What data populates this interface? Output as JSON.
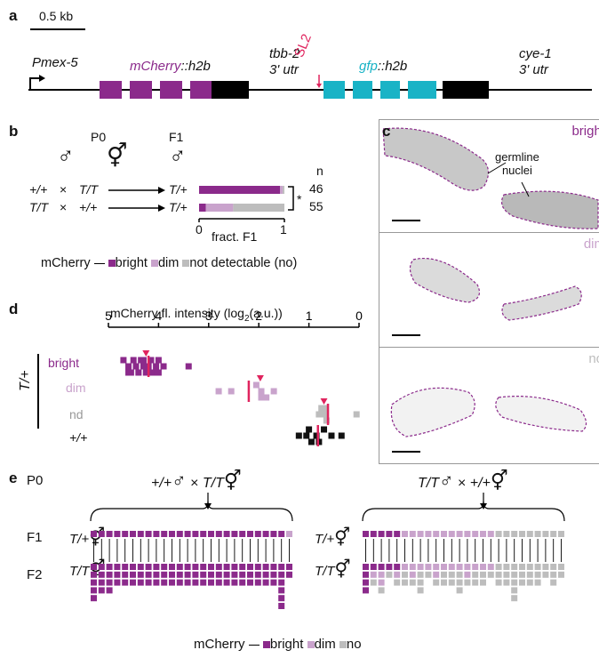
{
  "panel_a": {
    "letter": "a",
    "scale": "0.5 kb",
    "promoter": "Pmex-5",
    "gene1_a": "mCherry",
    "gene1_b": "::h2b",
    "utr1_a": "tbb-2",
    "utr1_b": "3' utr",
    "sl2": "SL2",
    "gene2_a": "gfp",
    "gene2_b": "::h2b",
    "utr2_a": "cye-1",
    "utr2_b": "3' utr"
  },
  "panel_b": {
    "letter": "b",
    "p0": "P0",
    "f1": "F1",
    "male_symbol": "♂",
    "herm_symbol": "⚥",
    "cross_rows": [
      {
        "male": "+/+",
        "herm": "T/T",
        "f1": "T/+",
        "n": "46"
      },
      {
        "male": "T/T",
        "herm": "+/+",
        "f1": "T/+",
        "n": "55"
      }
    ],
    "times": "×",
    "n_label": "n",
    "axis_label": "fract. F1",
    "tick0": "0",
    "tick1": "1",
    "significance": "*",
    "legend_prefix": "mCherry",
    "legend": [
      "bright",
      "dim",
      "not detectable (no)"
    ]
  },
  "panel_c": {
    "letter": "c",
    "labels": [
      "bright",
      "dim",
      "no"
    ],
    "annotation_a": "germline",
    "annotation_b": "nuclei"
  },
  "panel_d": {
    "letter": "d",
    "axis_title": "mCherry fl. intensity (log",
    "axis_sub": "2",
    "axis_tail": "(a.u.))",
    "ticks": [
      "5",
      "4",
      "3",
      "2",
      "1",
      "0"
    ],
    "genotype": "T/+",
    "rows": [
      "bright",
      "dim",
      "nd",
      "+/+"
    ]
  },
  "panel_e": {
    "letter": "e",
    "p0": "P0",
    "f1": "F1",
    "f2": "F2",
    "cross_left_a": "+/+",
    "cross_left_b": "T/T",
    "cross_right_a": "T/T",
    "cross_right_b": "+/+",
    "f1_geno": "T/+",
    "f2_geno": "T/T",
    "legend_prefix": "mCherry",
    "legend": [
      "bright",
      "dim",
      "no"
    ]
  },
  "colors": {
    "bright": "#8b2a8b",
    "dim": "#c9a3cc",
    "no": "#bdbdbd",
    "wt": "#111111",
    "median": "#e0245e",
    "gfp": "#19b3c6"
  },
  "chart_data": [
    {
      "type": "bar",
      "title": "",
      "xlabel": "fract. F1",
      "ylabel": "",
      "categories": [
        "+/+ ♂ × T/T ⚥",
        "T/T ♂ × +/+ ⚥"
      ],
      "series": [
        {
          "name": "bright",
          "values": [
            0.95,
            0.08
          ]
        },
        {
          "name": "dim",
          "values": [
            0.03,
            0.32
          ]
        },
        {
          "name": "not detectable (no)",
          "values": [
            0.02,
            0.6
          ]
        }
      ],
      "xlim": [
        0,
        1
      ],
      "orientation": "horizontal",
      "stacked": true
    },
    {
      "type": "scatter",
      "title": "",
      "xlabel": "mCherry fl. intensity (log2(a.u.))",
      "xlim": [
        5,
        0
      ],
      "categories": [
        "bright",
        "dim",
        "nd",
        "+/+"
      ],
      "series": [
        {
          "name": "bright",
          "x": [
            4.7,
            4.6,
            4.55,
            4.5,
            4.45,
            4.4,
            4.35,
            4.3,
            4.25,
            4.2,
            4.15,
            4.1,
            4.05,
            4.0,
            3.9,
            3.4,
            4.6,
            4.3,
            4.15,
            4.0
          ],
          "jitter": [
            -1,
            0,
            1,
            -1,
            0,
            1,
            -1,
            0,
            1,
            0,
            -1,
            1,
            0,
            -1,
            0,
            0,
            1,
            -1,
            1,
            1
          ],
          "median": 4.2,
          "arrow": 4.25
        },
        {
          "name": "dim",
          "x": [
            2.8,
            2.55,
            2.05,
            1.95,
            1.85,
            1.7,
            1.95
          ],
          "jitter": [
            0,
            0,
            -1,
            0,
            1,
            0,
            1
          ],
          "median": 2.2,
          "arrow": 1.97
        },
        {
          "name": "nd",
          "x": [
            0.75,
            0.7,
            0.65,
            0.8,
            0.7,
            0.05
          ],
          "jitter": [
            -1,
            0,
            1,
            0,
            -1,
            0
          ],
          "median": 0.62,
          "arrow": 0.7
        },
        {
          "name": "+/+",
          "x": [
            1.2,
            1.0,
            0.95,
            0.85,
            0.7,
            0.55,
            0.35,
            0.8,
            1.05
          ],
          "jitter": [
            0,
            -1,
            1,
            0,
            -1,
            0,
            0,
            1,
            0
          ],
          "median": 0.82
        }
      ]
    },
    {
      "type": "table",
      "title": "pedigree +/+ ♂ × T/T ⚥",
      "f1": [
        "b",
        "b",
        "b",
        "b",
        "b",
        "b",
        "b",
        "b",
        "b",
        "b",
        "b",
        "b",
        "b",
        "b",
        "b",
        "b",
        "b",
        "b",
        "b",
        "b",
        "b",
        "b",
        "b",
        "b",
        "b",
        "d"
      ],
      "f2": [
        [
          "b",
          "b",
          "b",
          "b",
          "b"
        ],
        [
          "b",
          "b",
          "b",
          "b"
        ],
        [
          "b",
          "b",
          "b",
          "b"
        ],
        [
          "b",
          "b",
          "b"
        ],
        [
          "b",
          "b",
          "b"
        ],
        [
          "b",
          "b",
          "b"
        ],
        [
          "b",
          "b",
          "b"
        ],
        [
          "b",
          "b",
          "b"
        ],
        [
          "b",
          "b",
          "b"
        ],
        [
          "b",
          "b",
          "b"
        ],
        [
          "b",
          "b",
          "b"
        ],
        [
          "b",
          "b",
          "b"
        ],
        [
          "b",
          "b",
          "b"
        ],
        [
          "b",
          "b",
          "b"
        ],
        [
          "b",
          "b",
          "b"
        ],
        [
          "b",
          "b",
          "b"
        ],
        [
          "b",
          "b",
          "b"
        ],
        [
          "b",
          "b",
          "b"
        ],
        [
          "b",
          "b",
          "b"
        ],
        [
          "b",
          "b",
          "b"
        ],
        [
          "b",
          "b",
          "b"
        ],
        [
          "b",
          "b",
          "b"
        ],
        [
          "b",
          "b",
          "b"
        ],
        [
          "b",
          "b",
          "b"
        ],
        [
          "b",
          "b",
          "b",
          "b",
          "b",
          "b"
        ],
        [
          "b",
          "b"
        ]
      ]
    },
    {
      "type": "table",
      "title": "pedigree T/T ♂ × +/+ ⚥",
      "f1": [
        "b",
        "b",
        "b",
        "b",
        "b",
        "d",
        "d",
        "d",
        "d",
        "d",
        "d",
        "d",
        "d",
        "d",
        "d",
        "d",
        "d",
        "n",
        "n",
        "n",
        "n",
        "n",
        "n",
        "n",
        "n",
        "n"
      ],
      "f2": [
        [
          "b",
          "b",
          "b",
          "b"
        ],
        [
          "b",
          "d",
          "n"
        ],
        [
          "b",
          "d",
          "d",
          "n"
        ],
        [
          "b",
          "n"
        ],
        [
          "b",
          "d",
          "n"
        ],
        [
          "d",
          "n",
          "n"
        ],
        [
          "d",
          "d",
          "n"
        ],
        [
          "d",
          "n",
          "n",
          "n"
        ],
        [
          "d",
          "n"
        ],
        [
          "d",
          "d",
          "n"
        ],
        [
          "d",
          "n",
          "n"
        ],
        [
          "d",
          "n",
          "n"
        ],
        [
          "d",
          "n",
          "n",
          "n"
        ],
        [
          "d",
          "d",
          "n"
        ],
        [
          "d",
          "n",
          "n"
        ],
        [
          "d",
          "n",
          "n"
        ],
        [
          "d",
          "n"
        ],
        [
          "n",
          "n",
          "n"
        ],
        [
          "n",
          "n",
          "n"
        ],
        [
          "n",
          "n",
          "n",
          "n",
          "n"
        ],
        [
          "n",
          "n",
          "n"
        ],
        [
          "n",
          "n",
          "n"
        ],
        [
          "n",
          "n",
          "n"
        ],
        [
          "n",
          "n"
        ],
        [
          "n",
          "n",
          "n"
        ],
        [
          "n",
          "n"
        ]
      ]
    }
  ]
}
